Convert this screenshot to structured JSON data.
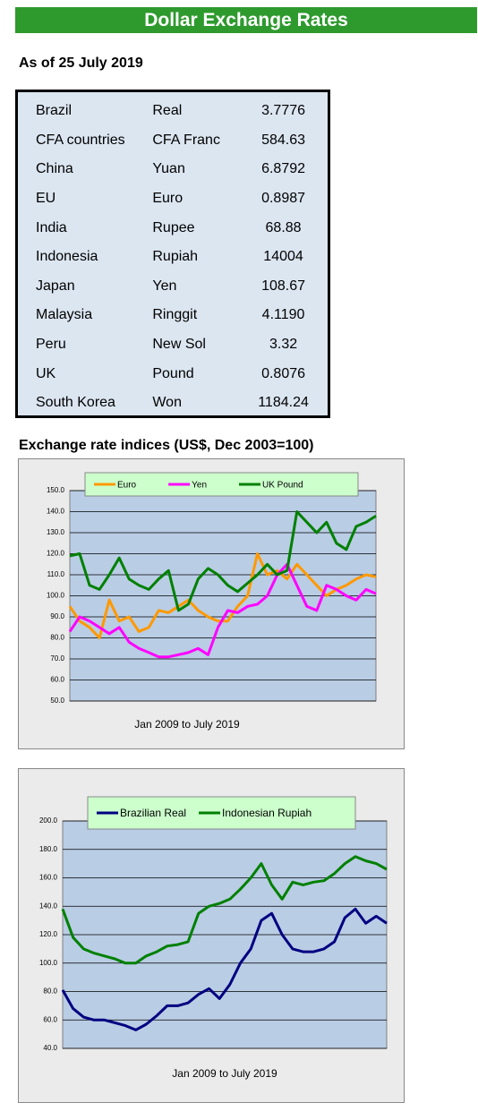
{
  "header": {
    "title": "Dollar Exchange Rates",
    "subtitle": "As of 25 July 2019"
  },
  "table": {
    "rows": [
      [
        "Brazil",
        "Real",
        "3.7776"
      ],
      [
        "CFA countries",
        "CFA Franc",
        "584.63"
      ],
      [
        "China",
        "Yuan",
        "6.8792"
      ],
      [
        "EU",
        "Euro",
        "0.8987"
      ],
      [
        "India",
        "Rupee",
        "68.88"
      ],
      [
        "Indonesia",
        "Rupiah",
        "14004"
      ],
      [
        "Japan",
        "Yen",
        "108.67"
      ],
      [
        "Malaysia",
        "Ringgit",
        "4.1190"
      ],
      [
        "Peru",
        "New Sol",
        "3.32"
      ],
      [
        "UK",
        "Pound",
        "0.8076"
      ],
      [
        "South Korea",
        "Won",
        "1184.24"
      ]
    ]
  },
  "charts_heading": "Exchange rate indices (US$, Dec 2003=100)",
  "chart_data": [
    {
      "type": "line",
      "x_label": "Jan 2009  to July 2019",
      "ylim": [
        50,
        150
      ],
      "yticks": [
        {
          "value": 50,
          "label": "50.0"
        },
        {
          "value": 60,
          "label": "60.0"
        },
        {
          "value": 70,
          "label": "70.0"
        },
        {
          "value": 80,
          "label": "80.0"
        },
        {
          "value": 90,
          "label": "90.0"
        },
        {
          "value": 100,
          "label": "100.0"
        },
        {
          "value": 110,
          "label": "110.0"
        },
        {
          "value": 120,
          "label": "120.0"
        },
        {
          "value": 130,
          "label": "130.0"
        },
        {
          "value": 140,
          "label": "140.0"
        },
        {
          "value": 150,
          "label": "150.0"
        }
      ],
      "grid": true,
      "legend": "top",
      "series": [
        {
          "name": "Euro",
          "color": "#ff9900",
          "values": [
            95,
            88,
            85,
            80,
            98,
            88,
            90,
            83,
            85,
            93,
            92,
            95,
            98,
            93,
            90,
            88,
            88,
            95,
            100,
            120,
            110,
            112,
            108,
            115,
            110,
            105,
            100,
            103,
            105,
            108,
            110,
            109
          ]
        },
        {
          "name": "Yen",
          "color": "#ff00ff",
          "values": [
            83,
            90,
            88,
            85,
            82,
            85,
            78,
            75,
            73,
            71,
            71,
            72,
            73,
            75,
            72,
            85,
            93,
            92,
            95,
            96,
            100,
            110,
            115,
            105,
            95,
            93,
            105,
            103,
            100,
            98,
            103,
            101
          ]
        },
        {
          "name": "UK Pound",
          "color": "#008000",
          "values": [
            119,
            120,
            105,
            103,
            110,
            118,
            108,
            105,
            103,
            108,
            112,
            93,
            96,
            108,
            113,
            110,
            105,
            102,
            106,
            110,
            115,
            110,
            112,
            140,
            135,
            130,
            135,
            125,
            122,
            133,
            135,
            138
          ]
        }
      ]
    },
    {
      "type": "line",
      "x_label": "Jan 2009  to July 2019",
      "ylim": [
        40,
        200
      ],
      "yticks": [
        {
          "value": 40,
          "label": "40.0"
        },
        {
          "value": 60,
          "label": "60.0"
        },
        {
          "value": 80,
          "label": "80.0"
        },
        {
          "value": 100,
          "label": "100.0"
        },
        {
          "value": 120,
          "label": "120.0"
        },
        {
          "value": 140,
          "label": "140.0"
        },
        {
          "value": 160,
          "label": "160.0"
        },
        {
          "value": 180,
          "label": "180.0"
        },
        {
          "value": 200,
          "label": "200.0"
        }
      ],
      "grid": true,
      "legend": "top",
      "series": [
        {
          "name": "Brazilian Real",
          "color": "#000080",
          "values": [
            81,
            68,
            62,
            60,
            60,
            58,
            56,
            53,
            57,
            63,
            70,
            70,
            72,
            78,
            82,
            75,
            85,
            100,
            110,
            130,
            135,
            120,
            110,
            108,
            108,
            110,
            115,
            132,
            138,
            128,
            133,
            128
          ]
        },
        {
          "name": "Indonesian Rupiah",
          "color": "#008000",
          "values": [
            138,
            118,
            110,
            107,
            105,
            103,
            100,
            100,
            105,
            108,
            112,
            113,
            115,
            135,
            140,
            142,
            145,
            152,
            160,
            170,
            155,
            145,
            157,
            155,
            157,
            158,
            163,
            170,
            175,
            172,
            170,
            166
          ]
        }
      ]
    }
  ]
}
